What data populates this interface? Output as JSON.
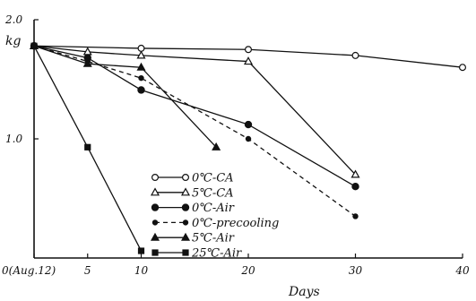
{
  "chart_data": {
    "type": "line",
    "title": "",
    "xlabel": "Days",
    "ylabel": "kg",
    "xlim": [
      0,
      40
    ],
    "ylim": [
      0,
      2.0
    ],
    "x_ticks": [
      {
        "value": 0,
        "label": "0(Aug.12)"
      },
      {
        "value": 5,
        "label": "5"
      },
      {
        "value": 10,
        "label": "10"
      },
      {
        "value": 20,
        "label": "20"
      },
      {
        "value": 30,
        "label": "30"
      },
      {
        "value": 40,
        "label": "40"
      }
    ],
    "y_ticks": [
      {
        "value": 1.0,
        "label": "1.0"
      },
      {
        "value": 2.0,
        "label": "2.0"
      }
    ],
    "grid": false,
    "legend_position": "bottom-center",
    "series": [
      {
        "name": "0℃-CA",
        "marker": "circle-open",
        "line": "solid",
        "x": [
          0,
          10,
          20,
          30,
          40
        ],
        "y": [
          1.78,
          1.76,
          1.75,
          1.7,
          1.6
        ]
      },
      {
        "name": "5℃-CA",
        "marker": "triangle-open",
        "line": "solid",
        "x": [
          0,
          5,
          10,
          20,
          30
        ],
        "y": [
          1.78,
          1.73,
          1.7,
          1.65,
          0.7
        ]
      },
      {
        "name": "0℃-Air",
        "marker": "circle-filled",
        "line": "solid",
        "x": [
          0,
          5,
          10,
          20,
          30
        ],
        "y": [
          1.78,
          1.68,
          1.41,
          1.12,
          0.6
        ]
      },
      {
        "name": "0℃-precooling",
        "marker": "dot-filled",
        "line": "dashed",
        "x": [
          0,
          5,
          10,
          20,
          30
        ],
        "y": [
          1.78,
          1.65,
          1.51,
          1.0,
          0.35
        ]
      },
      {
        "name": "5℃-Air",
        "marker": "triangle-filled",
        "line": "solid",
        "x": [
          0,
          5,
          10,
          17
        ],
        "y": [
          1.78,
          1.63,
          1.6,
          0.93
        ]
      },
      {
        "name": "25℃-Air",
        "marker": "square-filled",
        "line": "solid",
        "x": [
          0,
          5,
          10
        ],
        "y": [
          1.78,
          0.93,
          0.06
        ]
      }
    ]
  }
}
